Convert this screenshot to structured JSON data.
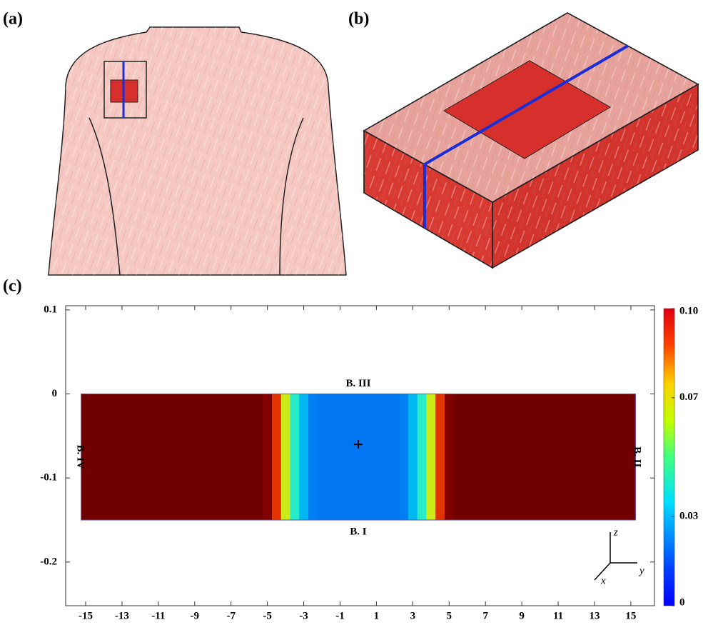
{
  "panels": [
    "(a)",
    "(b)",
    "(c)"
  ],
  "chart_data": {
    "type": "heatmap",
    "x": [
      -15,
      -14.5,
      -14,
      -13.5,
      -13,
      -12.5,
      -12,
      -11.5,
      -11,
      -10.5,
      -10,
      -9.5,
      -9,
      -8.5,
      -8,
      -7.5,
      -7,
      -6.5,
      -6,
      -5.5,
      -5,
      -4.5,
      -4,
      -3.5,
      -3,
      -2.5,
      -2,
      -1.5,
      -1,
      -0.5,
      0,
      0.5,
      1,
      1.5,
      2,
      2.5,
      3,
      3.5,
      4,
      4.5,
      5,
      5.5,
      6,
      6.5,
      7,
      7.5,
      8,
      8.5,
      9,
      9.5,
      10,
      10.5,
      11,
      11.5,
      12,
      12.5,
      13,
      13.5,
      14,
      14.5,
      15
    ],
    "values": [
      0.1,
      0.1,
      0.1,
      0.1,
      0.1,
      0.1,
      0.1,
      0.1,
      0.1,
      0.1,
      0.1,
      0.1,
      0.1,
      0.1,
      0.1,
      0.1,
      0.1,
      0.1,
      0.1,
      0.1,
      0.098,
      0.082,
      0.06,
      0.042,
      0.032,
      0.026,
      0.025,
      0.025,
      0.025,
      0.025,
      0.025,
      0.025,
      0.025,
      0.025,
      0.025,
      0.026,
      0.032,
      0.042,
      0.06,
      0.082,
      0.098,
      0.1,
      0.1,
      0.1,
      0.1,
      0.1,
      0.1,
      0.1,
      0.1,
      0.1,
      0.1,
      0.1,
      0.1,
      0.1,
      0.1,
      0.1,
      0.1,
      0.1,
      0.1,
      0.1,
      0.1
    ],
    "field_y": [
      -0.15,
      0
    ],
    "xlim": [
      -16.1,
      16.3
    ],
    "ylim": [
      -0.252,
      0.105
    ],
    "xticks": [
      -15,
      -13,
      -11,
      -9,
      -7,
      -5,
      -3,
      -1,
      1,
      3,
      5,
      7,
      9,
      11,
      13,
      15
    ],
    "yticks": [
      0.1,
      0,
      -0.1,
      -0.2
    ],
    "clim": [
      0,
      0.1
    ],
    "cticks": [
      0,
      0.03,
      0.07,
      {
        "value": 0.1,
        "label": "0.10"
      }
    ],
    "colormap": "jet",
    "annotations": {
      "bottom": "B. I",
      "right": "B. II",
      "top": "B. III",
      "left": "B. IV"
    },
    "marker": {
      "x": 0,
      "y": -0.06
    },
    "axes_labels": [
      "x",
      "y",
      "z"
    ]
  }
}
